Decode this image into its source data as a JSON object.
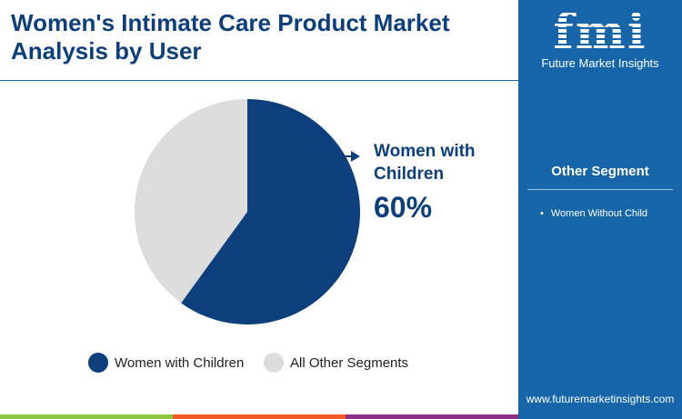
{
  "title": "Women's Intimate Care Product Market Analysis by User",
  "logo": {
    "mark": "fmi",
    "name": "Future Market Insights"
  },
  "side_panel": {
    "heading": "Other Segment",
    "items": [
      "Women Without Child"
    ],
    "url": "www.futuremarketinsights.com"
  },
  "colors": {
    "primary": "#0e3f7d",
    "other": "#dcdcdc",
    "panel": "#1565a8",
    "bars": [
      "#8cc63f",
      "#f15a24",
      "#8e2f86"
    ]
  },
  "chart_data": {
    "type": "pie",
    "categories": [
      "Women with Children",
      "All Other Segments"
    ],
    "values": [
      60,
      40
    ],
    "callout": {
      "label": "Women with Children",
      "value": "60%"
    },
    "legend": "bottom"
  }
}
